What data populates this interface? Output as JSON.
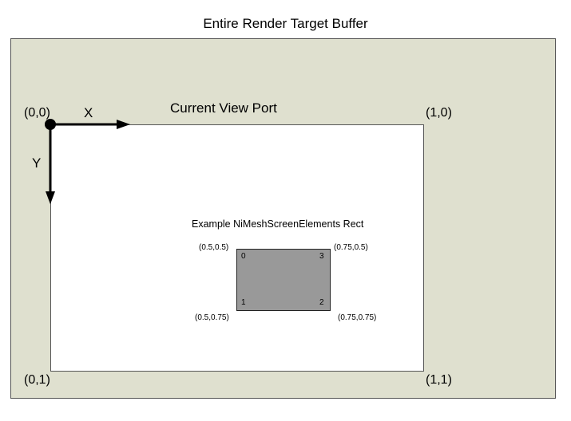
{
  "diagram": {
    "buffer": {
      "title": "Entire Render Target Buffer"
    },
    "viewport": {
      "title": "Current View Port",
      "corners": {
        "top_left": "(0,0)",
        "top_right": "(1,0)",
        "bottom_left": "(0,1)",
        "bottom_right": "(1,1)"
      },
      "axes": {
        "x": "X",
        "y": "Y"
      }
    },
    "screen_rect": {
      "title": "Example NiMeshScreenElements Rect",
      "coords": {
        "top_left": "(0.5,0.5)",
        "top_right": "(0.75,0.5)",
        "bottom_left": "(0.5,0.75)",
        "bottom_right": "(0.75,0.75)"
      },
      "vertices": {
        "top_left": "0",
        "top_right": "3",
        "bottom_left": "1",
        "bottom_right": "2"
      }
    }
  },
  "colors": {
    "buffer_fill": "#dfe0cf",
    "viewport_fill": "#ffffff",
    "rect_fill": "#999999",
    "axis_color": "#000000"
  }
}
